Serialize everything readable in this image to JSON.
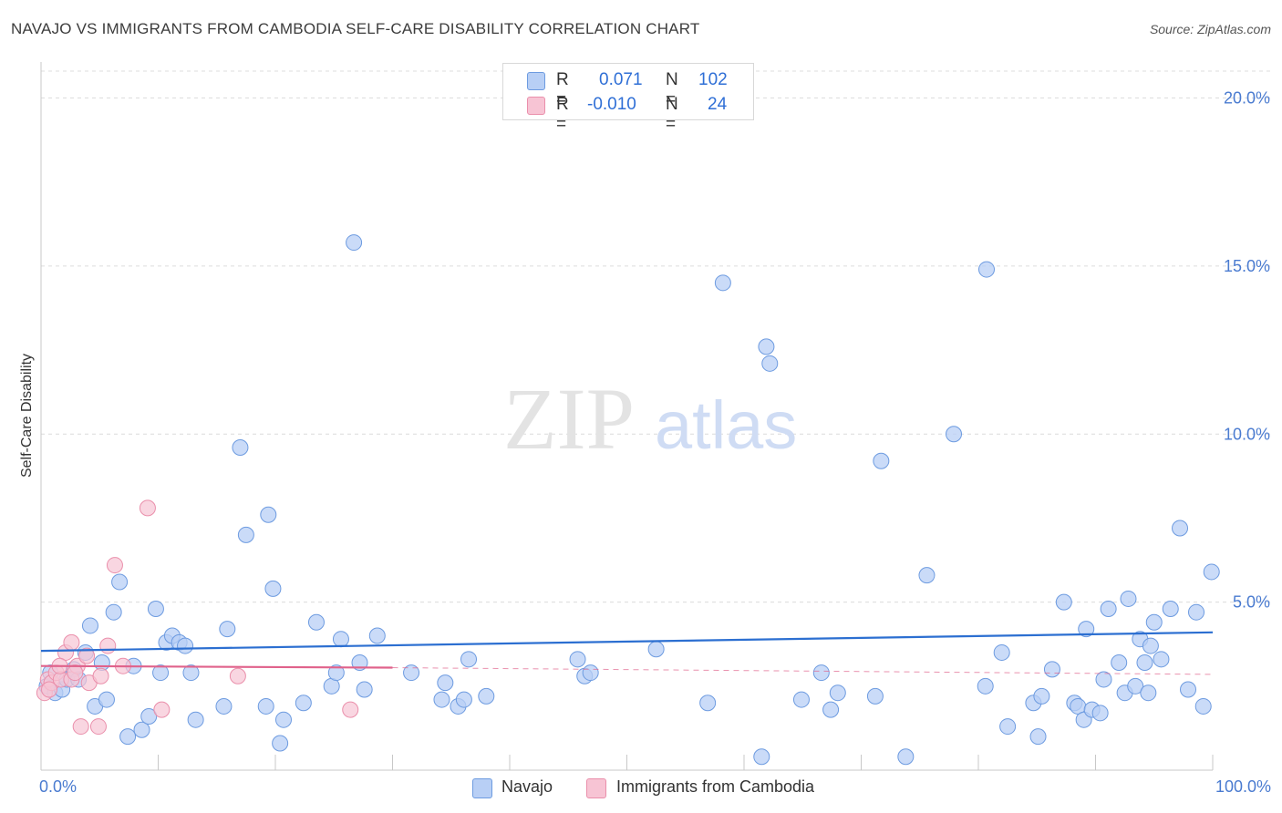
{
  "header": {
    "title": "NAVAJO VS IMMIGRANTS FROM CAMBODIA SELF-CARE DISABILITY CORRELATION CHART",
    "source": "Source: ZipAtlas.com"
  },
  "watermark": {
    "part1": "ZIP",
    "part2": "atlas"
  },
  "colors": {
    "navajo_fill": "#b8cff5",
    "navajo_stroke": "#6d9be0",
    "navajo_line": "#2c6fd1",
    "cambodia_fill": "#f7c4d4",
    "cambodia_stroke": "#ea8fab",
    "cambodia_line": "#e0628b",
    "grid": "#dcdcdc",
    "tick_text": "#4a7bd0"
  },
  "legend": {
    "rows": [
      {
        "r_label": "R =",
        "r_value": "0.071",
        "n_label": "N =",
        "n_value": "102"
      },
      {
        "r_label": "R =",
        "r_value": "-0.010",
        "n_label": "N =",
        "n_value": "24"
      }
    ]
  },
  "bottom_legend": {
    "series1": "Navajo",
    "series2": "Immigrants from Cambodia"
  },
  "chart_data": {
    "type": "scatter",
    "title": "NAVAJO VS IMMIGRANTS FROM CAMBODIA SELF-CARE DISABILITY CORRELATION CHART",
    "xlabel": "",
    "ylabel": "Self-Care Disability",
    "xlim": [
      0,
      100
    ],
    "ylim": [
      0,
      20.8
    ],
    "x_tick_labels": [
      "0.0%",
      "100.0%"
    ],
    "y_ticks": [
      5,
      10,
      15,
      20
    ],
    "y_tick_labels": [
      "5.0%",
      "10.0%",
      "15.0%",
      "20.0%"
    ],
    "grid": true,
    "series": [
      {
        "name": "Navajo",
        "r": 0.071,
        "n": 102,
        "trend": {
          "x": [
            0,
            100
          ],
          "y": [
            3.55,
            4.1
          ]
        },
        "points": [
          [
            0.5,
            2.5
          ],
          [
            0.8,
            2.9
          ],
          [
            1.2,
            2.3
          ],
          [
            1.8,
            2.4
          ],
          [
            2.2,
            2.7
          ],
          [
            2.8,
            3.0
          ],
          [
            3.2,
            2.7
          ],
          [
            3.8,
            3.5
          ],
          [
            4.2,
            4.3
          ],
          [
            4.6,
            1.9
          ],
          [
            5.2,
            3.2
          ],
          [
            5.6,
            2.1
          ],
          [
            6.2,
            4.7
          ],
          [
            6.7,
            5.6
          ],
          [
            7.4,
            1.0
          ],
          [
            7.9,
            3.1
          ],
          [
            8.6,
            1.2
          ],
          [
            9.2,
            1.6
          ],
          [
            9.8,
            4.8
          ],
          [
            10.2,
            2.9
          ],
          [
            10.7,
            3.8
          ],
          [
            11.2,
            4.0
          ],
          [
            11.8,
            3.8
          ],
          [
            12.3,
            3.7
          ],
          [
            12.8,
            2.9
          ],
          [
            13.2,
            1.5
          ],
          [
            15.6,
            1.9
          ],
          [
            15.9,
            4.2
          ],
          [
            17.0,
            9.6
          ],
          [
            17.5,
            7.0
          ],
          [
            19.2,
            1.9
          ],
          [
            19.4,
            7.6
          ],
          [
            19.8,
            5.4
          ],
          [
            20.4,
            0.8
          ],
          [
            20.7,
            1.5
          ],
          [
            22.4,
            2.0
          ],
          [
            23.5,
            4.4
          ],
          [
            24.8,
            2.5
          ],
          [
            25.2,
            2.9
          ],
          [
            25.6,
            3.9
          ],
          [
            26.7,
            15.7
          ],
          [
            27.2,
            3.2
          ],
          [
            27.6,
            2.4
          ],
          [
            28.7,
            4.0
          ],
          [
            31.6,
            2.9
          ],
          [
            34.2,
            2.1
          ],
          [
            34.5,
            2.6
          ],
          [
            35.6,
            1.9
          ],
          [
            36.1,
            2.1
          ],
          [
            36.5,
            3.3
          ],
          [
            38.0,
            2.2
          ],
          [
            45.8,
            3.3
          ],
          [
            46.4,
            2.8
          ],
          [
            46.9,
            2.9
          ],
          [
            52.5,
            3.6
          ],
          [
            56.9,
            2.0
          ],
          [
            58.2,
            14.5
          ],
          [
            61.5,
            0.4
          ],
          [
            61.9,
            12.6
          ],
          [
            62.2,
            12.1
          ],
          [
            64.9,
            2.1
          ],
          [
            66.6,
            2.9
          ],
          [
            67.4,
            1.8
          ],
          [
            68.0,
            2.3
          ],
          [
            71.2,
            2.2
          ],
          [
            71.7,
            9.2
          ],
          [
            73.8,
            0.4
          ],
          [
            75.6,
            5.8
          ],
          [
            77.9,
            10.0
          ],
          [
            80.6,
            2.5
          ],
          [
            80.7,
            14.9
          ],
          [
            82.0,
            3.5
          ],
          [
            82.5,
            1.3
          ],
          [
            84.7,
            2.0
          ],
          [
            85.1,
            1.0
          ],
          [
            85.4,
            2.2
          ],
          [
            86.3,
            3.0
          ],
          [
            87.3,
            5.0
          ],
          [
            88.2,
            2.0
          ],
          [
            88.5,
            1.9
          ],
          [
            89.0,
            1.5
          ],
          [
            89.2,
            4.2
          ],
          [
            89.7,
            1.8
          ],
          [
            90.4,
            1.7
          ],
          [
            90.7,
            2.7
          ],
          [
            91.1,
            4.8
          ],
          [
            92.0,
            3.2
          ],
          [
            92.5,
            2.3
          ],
          [
            92.8,
            5.1
          ],
          [
            93.4,
            2.5
          ],
          [
            93.8,
            3.9
          ],
          [
            94.2,
            3.2
          ],
          [
            94.5,
            2.3
          ],
          [
            94.7,
            3.7
          ],
          [
            95.0,
            4.4
          ],
          [
            95.6,
            3.3
          ],
          [
            96.4,
            4.8
          ],
          [
            97.2,
            7.2
          ],
          [
            97.9,
            2.4
          ],
          [
            98.6,
            4.7
          ],
          [
            99.2,
            1.9
          ],
          [
            99.9,
            5.9
          ]
        ]
      },
      {
        "name": "Immigrants from Cambodia",
        "r": -0.01,
        "n": 24,
        "trend": {
          "x": [
            0,
            30
          ],
          "y": [
            3.1,
            3.05
          ],
          "dashed_to": [
            100,
            2.85
          ]
        },
        "points": [
          [
            0.3,
            2.3
          ],
          [
            0.6,
            2.7
          ],
          [
            0.9,
            2.6
          ],
          [
            1.3,
            2.9
          ],
          [
            1.7,
            2.7
          ],
          [
            2.1,
            3.5
          ],
          [
            2.6,
            2.7
          ],
          [
            2.6,
            3.8
          ],
          [
            3.1,
            3.1
          ],
          [
            3.4,
            1.3
          ],
          [
            3.9,
            3.4
          ],
          [
            4.1,
            2.6
          ],
          [
            4.9,
            1.3
          ],
          [
            5.1,
            2.8
          ],
          [
            5.7,
            3.7
          ],
          [
            6.3,
            6.1
          ],
          [
            7.0,
            3.1
          ],
          [
            9.1,
            7.8
          ],
          [
            10.3,
            1.8
          ],
          [
            16.8,
            2.8
          ],
          [
            26.4,
            1.8
          ],
          [
            0.7,
            2.4
          ],
          [
            1.6,
            3.1
          ],
          [
            2.9,
            2.9
          ]
        ]
      }
    ]
  }
}
